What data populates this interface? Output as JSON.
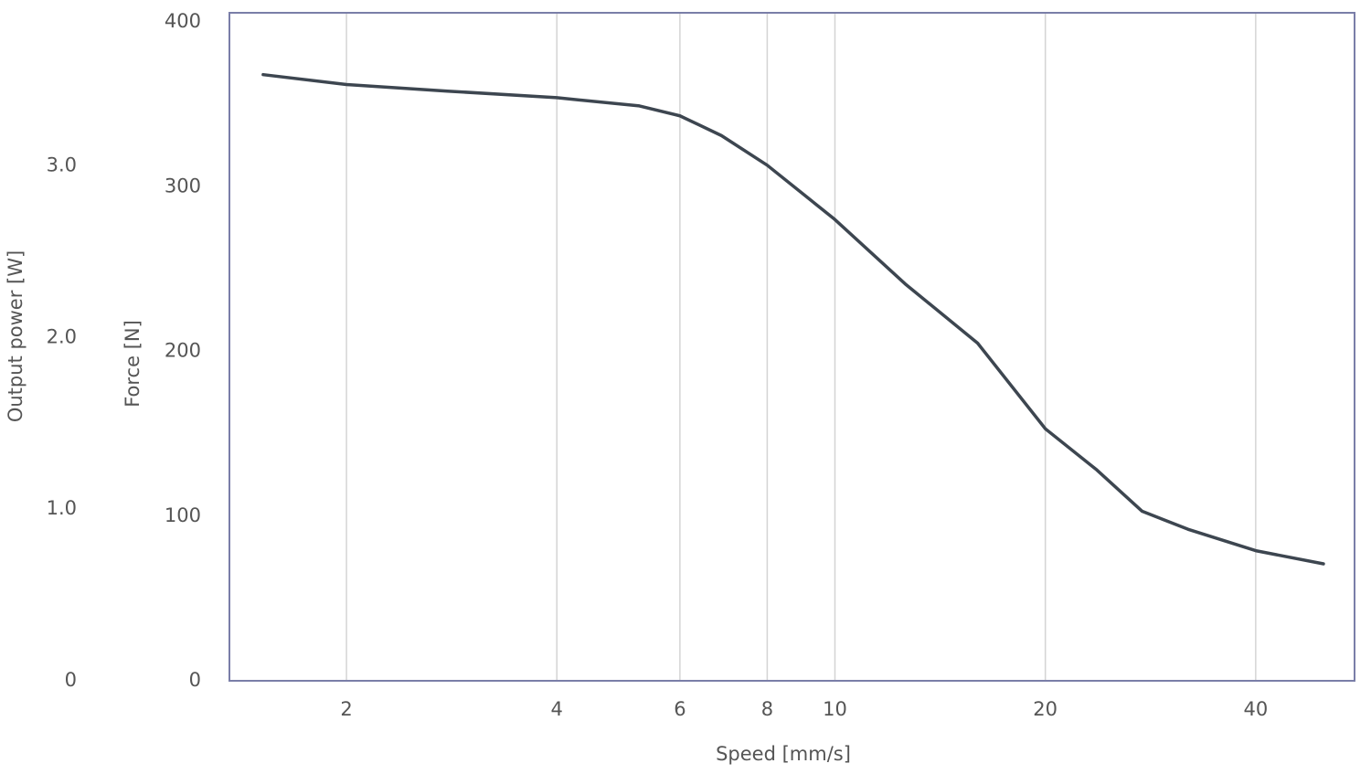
{
  "chart_data": {
    "type": "line",
    "xlabel": "Speed [mm/s]",
    "ylabel": "Force [N]",
    "y2label": "Output power [W]",
    "xscale": "log",
    "xgrid": true,
    "x": [
      1.52,
      2,
      2.79,
      4,
      5.25,
      6,
      6.88,
      8,
      10,
      12.6,
      16,
      20,
      23.7,
      27.5,
      32,
      40,
      50
    ],
    "series": [
      {
        "name": "Force",
        "color": "#3d4650",
        "values": [
          368,
          362,
          358,
          354,
          349,
          343,
          331,
          313,
          280,
          241,
          205,
          153,
          128,
          103,
          92,
          79,
          71
        ]
      }
    ],
    "xlim": [
      1.36,
      55.4
    ],
    "xticks": [
      2,
      4,
      6,
      8,
      10,
      20,
      40
    ],
    "ylim": [
      0,
      400
    ],
    "yticks": [
      0,
      100,
      200,
      300,
      400
    ],
    "y2lim": [
      0,
      3.84
    ],
    "y2ticks": [
      0,
      {
        "value": 1,
        "label": "1.0"
      },
      {
        "value": 2,
        "label": "2.0"
      },
      {
        "value": 3,
        "label": "3.0"
      }
    ]
  }
}
